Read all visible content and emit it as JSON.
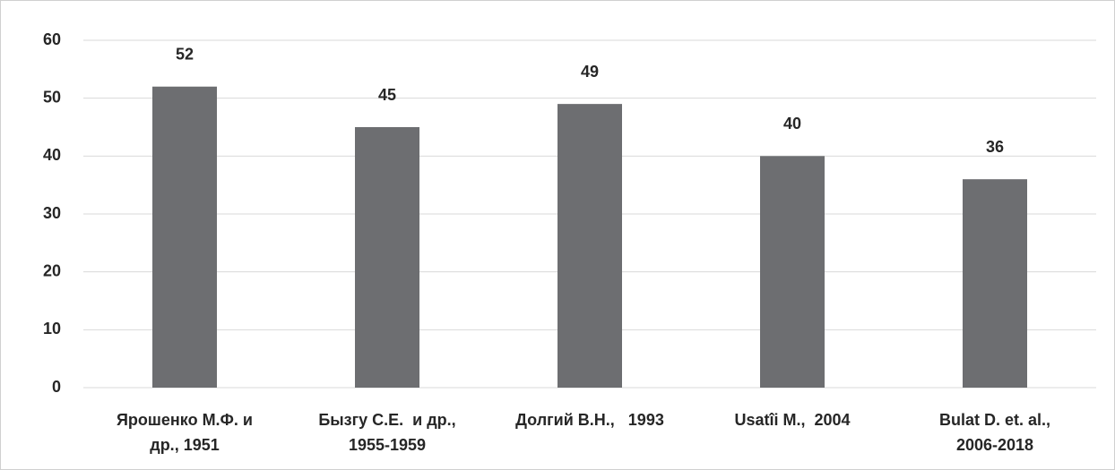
{
  "chart_data": {
    "type": "bar",
    "categories": [
      [
        "Ярошенко М.Ф. и",
        "др., 1951"
      ],
      [
        "Бызгу С.Е.  и др.,",
        "1955-1959"
      ],
      [
        "Долгий В.Н.,   1993"
      ],
      [
        "Usatîi M.,  2004"
      ],
      [
        "Bulat D. et. al.,",
        "2006-2018"
      ]
    ],
    "values": [
      52,
      45,
      49,
      40,
      36
    ],
    "color": "#6d6e71",
    "ylim": [
      0,
      60
    ],
    "yticks": [
      0,
      10,
      20,
      30,
      40,
      50,
      60
    ],
    "grid": true
  }
}
